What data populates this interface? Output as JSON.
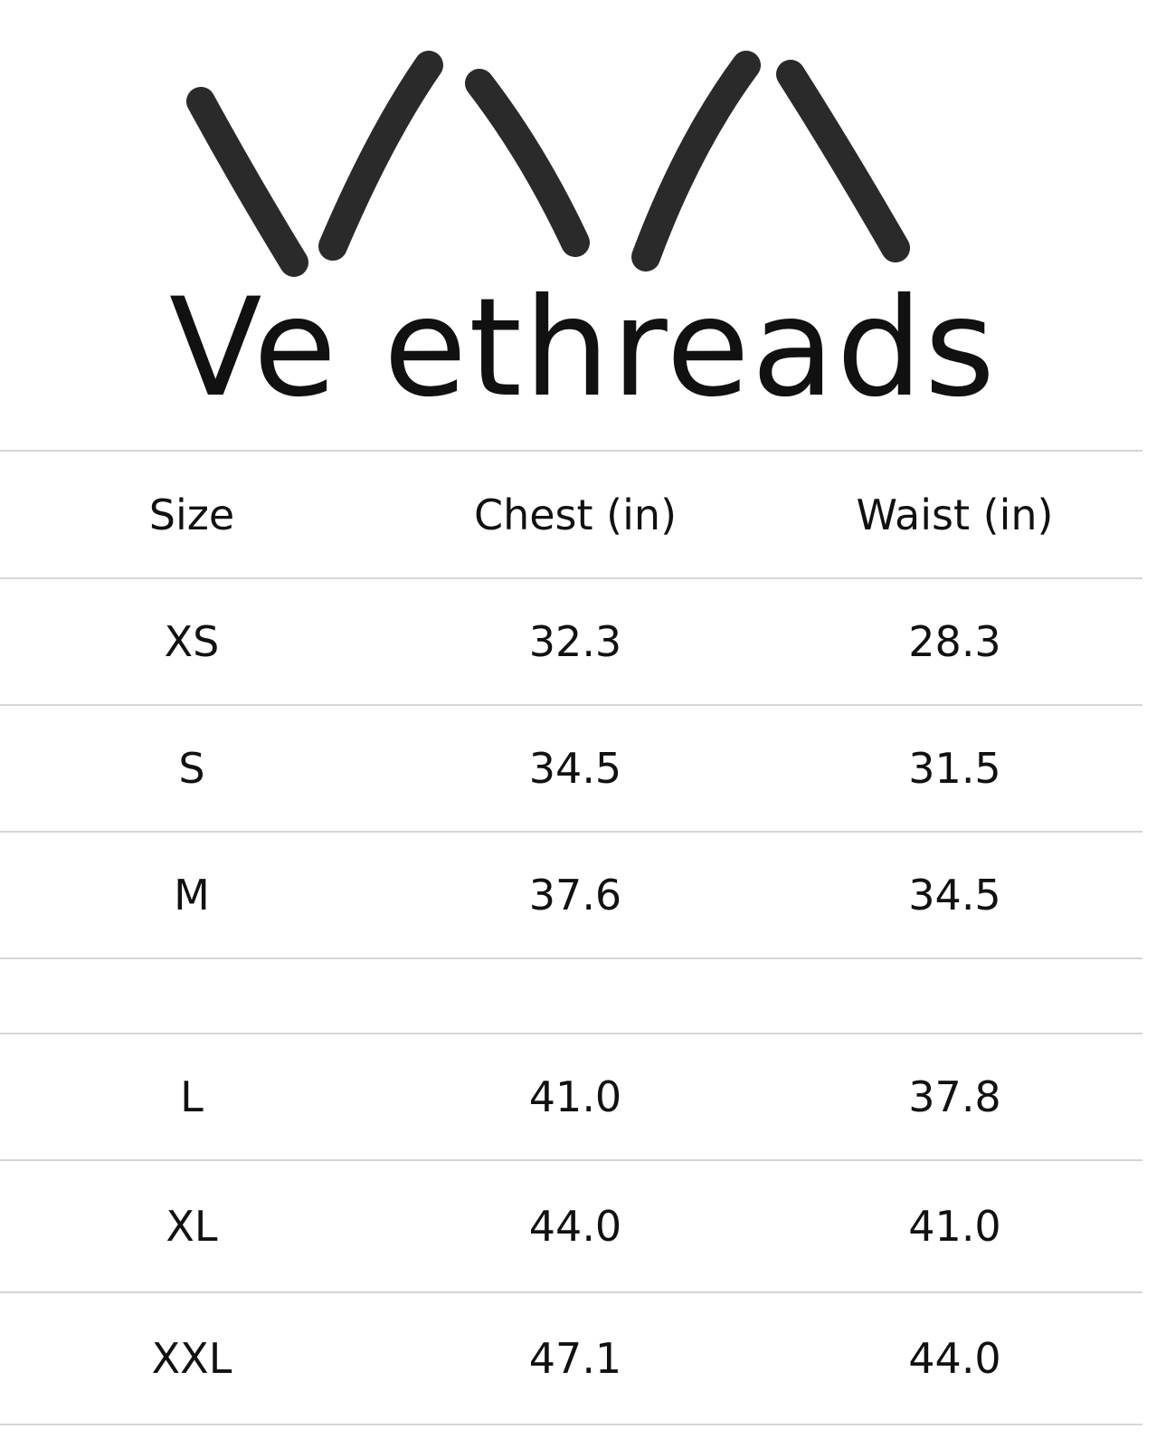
{
  "logo": {
    "brand_name": "Ve ethreads",
    "stroke_color": "#2a2a2a"
  },
  "table": {
    "headers": [
      "Size",
      "Chest (in)",
      "Waist (in)"
    ],
    "rows": [
      [
        "XS",
        "32.3",
        "28.3"
      ],
      [
        "S",
        "34.5",
        "31.5"
      ],
      [
        "M",
        "37.6",
        "34.5"
      ],
      [
        "",
        "",
        ""
      ],
      [
        "L",
        "41.0",
        "37.8"
      ],
      [
        "XL",
        "44.0",
        "41.0"
      ],
      [
        "XXL",
        "47.1",
        "44.0"
      ]
    ]
  }
}
